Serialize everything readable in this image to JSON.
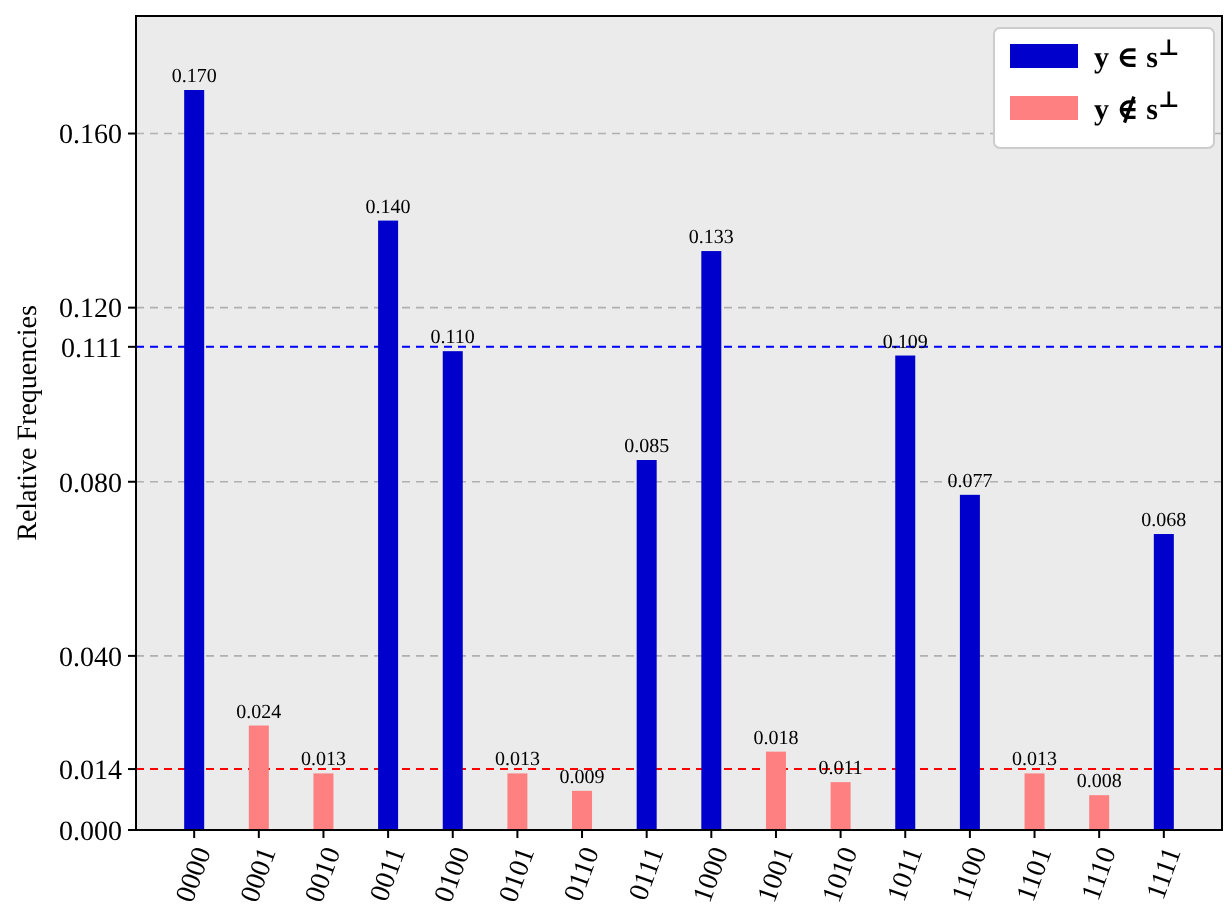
{
  "chart_data": {
    "type": "bar",
    "ylabel": "Relative Frequencies",
    "categories": [
      "0000",
      "0001",
      "0010",
      "0011",
      "0100",
      "0101",
      "0110",
      "0111",
      "1000",
      "1001",
      "1010",
      "1011",
      "1100",
      "1101",
      "1110",
      "1111"
    ],
    "series": [
      {
        "name": "y ∈ s$^{⊥}$",
        "color": "#0000cc",
        "values": [
          0.17,
          null,
          null,
          0.14,
          0.11,
          null,
          null,
          0.085,
          0.133,
          null,
          null,
          0.109,
          0.077,
          null,
          null,
          0.068
        ],
        "value_labels": [
          "0.170",
          null,
          null,
          "0.140",
          "0.110",
          null,
          null,
          "0.085",
          "0.133",
          null,
          null,
          "0.109",
          "0.077",
          null,
          null,
          "0.068"
        ]
      },
      {
        "name": "y ∉ s$^{⊥}$",
        "color": "#ff8080",
        "values": [
          null,
          0.024,
          0.013,
          null,
          null,
          0.013,
          0.009,
          null,
          null,
          0.018,
          0.011,
          null,
          null,
          0.013,
          0.008,
          null
        ],
        "value_labels": [
          null,
          "0.024",
          "0.013",
          null,
          null,
          "0.013",
          "0.009",
          null,
          null,
          "0.018",
          "0.011",
          null,
          null,
          "0.013",
          "0.008",
          null
        ]
      }
    ],
    "ylim": [
      0,
      0.187
    ],
    "yticks": [
      {
        "value": 0,
        "label": "0.000"
      },
      {
        "value": 0.014,
        "label": "0.014"
      },
      {
        "value": 0.04,
        "label": "0.040"
      },
      {
        "value": 0.08,
        "label": "0.080"
      },
      {
        "value": 0.111,
        "label": "0.111"
      },
      {
        "value": 0.12,
        "label": "0.120"
      },
      {
        "value": 0.16,
        "label": "0.160"
      }
    ],
    "ref_lines": [
      {
        "axis": "y",
        "value": 0.111,
        "color": "#0000ff",
        "line_style": "dashed"
      },
      {
        "axis": "y",
        "value": 0.014,
        "color": "#ff0000",
        "line_style": "dashed"
      }
    ],
    "grid": "y",
    "legend": "top right"
  }
}
